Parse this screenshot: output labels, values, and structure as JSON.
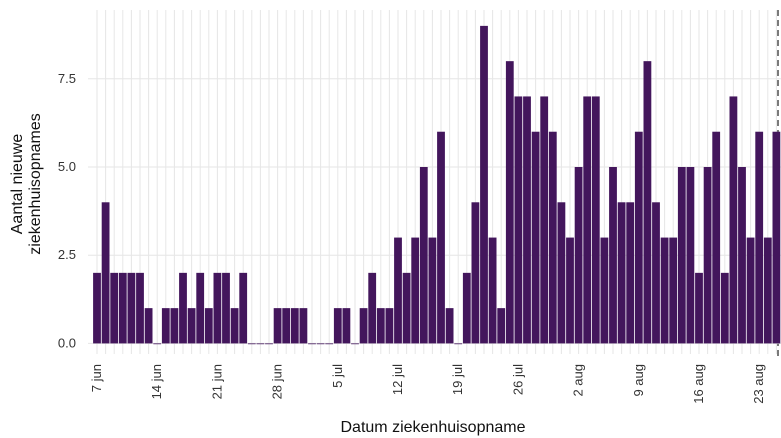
{
  "chart_data": {
    "type": "bar",
    "x_label": "Datum ziekenhuisopname",
    "y_label": [
      "Aantal nieuwe",
      "ziekenhuisopnames"
    ],
    "categories": [
      "7 jun",
      null,
      null,
      null,
      null,
      null,
      null,
      "14 jun",
      null,
      null,
      null,
      null,
      null,
      null,
      "21 jun",
      null,
      null,
      null,
      null,
      null,
      null,
      "28 jun",
      null,
      null,
      null,
      null,
      null,
      null,
      "5 jul",
      null,
      null,
      null,
      null,
      null,
      null,
      "12 jul",
      null,
      null,
      null,
      null,
      null,
      null,
      "19 jul",
      null,
      null,
      null,
      null,
      null,
      null,
      "26 jul",
      null,
      null,
      null,
      null,
      null,
      null,
      "2 aug",
      null,
      null,
      null,
      null,
      null,
      null,
      "9 aug",
      null,
      null,
      null,
      null,
      null,
      null,
      "16 aug",
      null,
      null,
      null,
      null,
      null,
      null,
      "23 aug",
      null,
      null
    ],
    "values": [
      2,
      4,
      2,
      2,
      2,
      2,
      1,
      0,
      1,
      1,
      2,
      1,
      2,
      1,
      2,
      2,
      1,
      2,
      0,
      0,
      0,
      1,
      1,
      1,
      1,
      0,
      0,
      0,
      1,
      1,
      0,
      1,
      2,
      1,
      1,
      3,
      2,
      3,
      5,
      3,
      6,
      1,
      0,
      2,
      4,
      9,
      3,
      1,
      8,
      7,
      7,
      6,
      7,
      6,
      4,
      3,
      5,
      7,
      7,
      3,
      5,
      4,
      4,
      6,
      8,
      4,
      3,
      3,
      5,
      5,
      2,
      5,
      6,
      2,
      7,
      5,
      3,
      6,
      3,
      6
    ],
    "color": "#43165c",
    "ylim": [
      -0.3,
      9.45
    ],
    "yticks": [
      {
        "value": 0,
        "label": "0.0"
      },
      2.5,
      {
        "value": 5,
        "label": "5.0"
      },
      7.5
    ],
    "grid": true
  }
}
